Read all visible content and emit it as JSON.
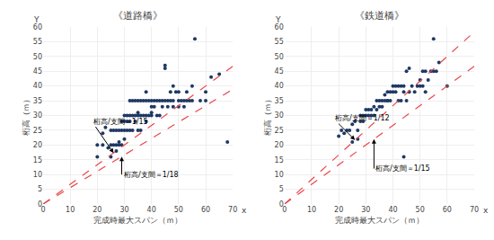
{
  "chart_data": [
    {
      "type": "scatter",
      "title": "《道路橋》",
      "x_label": "完成時最大スパン（ｍ）",
      "y_label": "桁高（ｍ）",
      "xlim": [
        0,
        70
      ],
      "ylim": [
        0,
        60
      ],
      "xticks": [
        0,
        10,
        20,
        30,
        40,
        50,
        60,
        70
      ],
      "yticks": [
        0,
        5,
        10,
        15,
        20,
        25,
        30,
        35,
        40,
        45,
        50,
        55,
        60
      ],
      "grid": true,
      "series": [
        {
          "type": "scatter",
          "marker": "circle",
          "color": "#1f3864",
          "x": [
            20,
            20,
            22,
            22,
            23,
            24,
            25,
            25,
            25,
            26,
            26,
            27,
            27,
            27,
            28,
            28,
            28,
            29,
            29,
            29,
            30,
            30,
            30,
            30,
            31,
            31,
            31,
            32,
            32,
            32,
            32,
            33,
            33,
            33,
            34,
            34,
            34,
            35,
            35,
            35,
            35,
            36,
            36,
            36,
            37,
            37,
            38,
            38,
            38,
            38,
            39,
            39,
            40,
            40,
            40,
            40,
            41,
            41,
            42,
            42,
            43,
            43,
            44,
            44,
            45,
            45,
            45,
            46,
            46,
            47,
            47,
            48,
            48,
            48,
            49,
            50,
            50,
            50,
            51,
            52,
            52,
            53,
            53,
            54,
            55,
            55,
            56,
            58,
            60,
            60,
            62,
            65,
            68
          ],
          "values": [
            20,
            16,
            24,
            20,
            26,
            19,
            16,
            20,
            25,
            20,
            25,
            20,
            25,
            18,
            20,
            25,
            21,
            25,
            20,
            28,
            25,
            30,
            28,
            22,
            25,
            30,
            28,
            25,
            30,
            35,
            28,
            30,
            35,
            25,
            30,
            35,
            28,
            30,
            35,
            25,
            31,
            30,
            35,
            25,
            35,
            30,
            30,
            35,
            28,
            38,
            30,
            35,
            30,
            35,
            31,
            33,
            33,
            35,
            35,
            30,
            35,
            30,
            33,
            35,
            47,
            46,
            35,
            35,
            33,
            35,
            38,
            35,
            40,
            33,
            38,
            35,
            33,
            38,
            35,
            35,
            33,
            35,
            38,
            35,
            35,
            40,
            56,
            35,
            35,
            38,
            43,
            44,
            21
          ]
        },
        {
          "type": "line",
          "line_style": "dashed",
          "color": "#e8474c",
          "x": [
            0,
            70
          ],
          "values": [
            0,
            46.669
          ]
        },
        {
          "type": "line",
          "line_style": "dashed",
          "color": "#e8474c",
          "x": [
            0,
            70
          ],
          "values": [
            0,
            38.892
          ]
        }
      ],
      "annotations": [
        {
          "text": "桁高/支間＝1/15",
          "x": 26,
          "y": 17.3,
          "text_x": 18,
          "text_y": 28
        },
        {
          "text": "桁高/支間＝1/18",
          "x": 29,
          "y": 16.1,
          "text_x": 29,
          "text_y": 10
        },
        {
          "text": "Y",
          "x": 0,
          "y": 60
        },
        {
          "text": "x",
          "x": 70,
          "y": 0
        }
      ]
    },
    {
      "type": "scatter",
      "title": "《鉄道橋》",
      "x_label": "完成時最大スパン（ｍ）",
      "y_label": "桁高（ｍ）",
      "xlim": [
        0,
        70
      ],
      "ylim": [
        0,
        60
      ],
      "xticks": [
        0,
        10,
        20,
        30,
        40,
        50,
        60,
        70
      ],
      "yticks": [
        0,
        5,
        10,
        15,
        20,
        25,
        30,
        35,
        40,
        45,
        50,
        55,
        60
      ],
      "grid": true,
      "series": [
        {
          "type": "scatter",
          "marker": "circle",
          "color": "#1f3864",
          "x": [
            20,
            21,
            22,
            23,
            24,
            25,
            25,
            26,
            27,
            27,
            28,
            28,
            29,
            29,
            30,
            30,
            31,
            31,
            32,
            32,
            33,
            33,
            34,
            34,
            35,
            35,
            36,
            36,
            37,
            37,
            38,
            38,
            38,
            39,
            39,
            40,
            40,
            41,
            41,
            42,
            42,
            43,
            43,
            44,
            44,
            45,
            45,
            46,
            46,
            47,
            48,
            49,
            50,
            50,
            51,
            51,
            52,
            52,
            53,
            54,
            55,
            56,
            57,
            44,
            55,
            60
          ],
          "values": [
            23,
            25,
            24,
            25,
            25,
            21,
            27,
            28,
            22,
            25,
            28,
            30,
            28,
            30,
            30,
            32,
            30,
            32,
            30,
            32,
            30,
            33,
            32,
            35,
            33,
            35,
            33,
            35,
            35,
            37,
            35,
            38,
            35,
            38,
            35,
            40,
            38,
            40,
            38,
            40,
            35,
            40,
            35,
            40,
            38,
            45,
            35,
            46,
            38,
            40,
            38,
            40,
            42,
            40,
            40,
            45,
            38,
            45,
            42,
            45,
            45,
            45,
            48,
            16,
            56,
            40
          ]
        },
        {
          "type": "line",
          "line_style": "dashed",
          "color": "#e8474c",
          "x": [
            0,
            70
          ],
          "values": [
            0,
            58.331
          ]
        },
        {
          "type": "line",
          "line_style": "dashed",
          "color": "#e8474c",
          "x": [
            0,
            70
          ],
          "values": [
            0,
            46.669
          ]
        }
      ],
      "annotations": [
        {
          "text": "桁高/支間＝1/12",
          "x": 26,
          "y": 21.7,
          "text_x": 18,
          "text_y": 29
        },
        {
          "text": "桁高/支間＝1/15",
          "x": 33,
          "y": 22.0,
          "text_x": 33,
          "text_y": 12
        },
        {
          "text": "Y",
          "x": 0,
          "y": 60
        },
        {
          "text": "x",
          "x": 70,
          "y": 0
        }
      ]
    }
  ]
}
